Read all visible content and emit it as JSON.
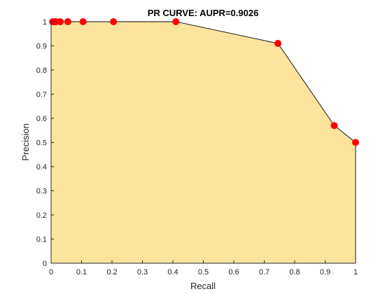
{
  "chart_data": {
    "type": "area",
    "title": "PR CURVE: AUPR=0.9026",
    "xlabel": "Recall",
    "ylabel": "Precision",
    "xlim": [
      0,
      1
    ],
    "ylim": [
      0,
      1
    ],
    "xticks": [
      0,
      0.1,
      0.2,
      0.3,
      0.4,
      0.5,
      0.6,
      0.7,
      0.8,
      0.9,
      1
    ],
    "xtick_labels": [
      "0",
      "0.1",
      "0.2",
      "0.3",
      "0.4",
      "0.5",
      "0.6",
      "0.7",
      "0.8",
      "0.9",
      "1"
    ],
    "yticks": [
      0,
      0.1,
      0.2,
      0.3,
      0.4,
      0.5,
      0.6,
      0.7,
      0.8,
      0.9,
      1
    ],
    "ytick_labels": [
      "0",
      "0.1",
      "0.2",
      "0.3",
      "0.4",
      "0.5",
      "0.6",
      "0.7",
      "0.8",
      "0.9",
      "1"
    ],
    "grid": false,
    "legend": null,
    "series": [
      {
        "name": "PR curve",
        "x": [
          0,
          0.005,
          0.01,
          0.015,
          0.03,
          0.055,
          0.105,
          0.205,
          0.41,
          0.745,
          0.93,
          1.0
        ],
        "y": [
          1,
          1,
          1,
          1,
          1,
          1,
          1,
          1,
          1,
          0.91,
          0.57,
          0.5
        ]
      }
    ],
    "colors": {
      "fill": "#fde49e",
      "line": "#000000",
      "marker": "#ff0000",
      "axis": "#262626"
    }
  }
}
